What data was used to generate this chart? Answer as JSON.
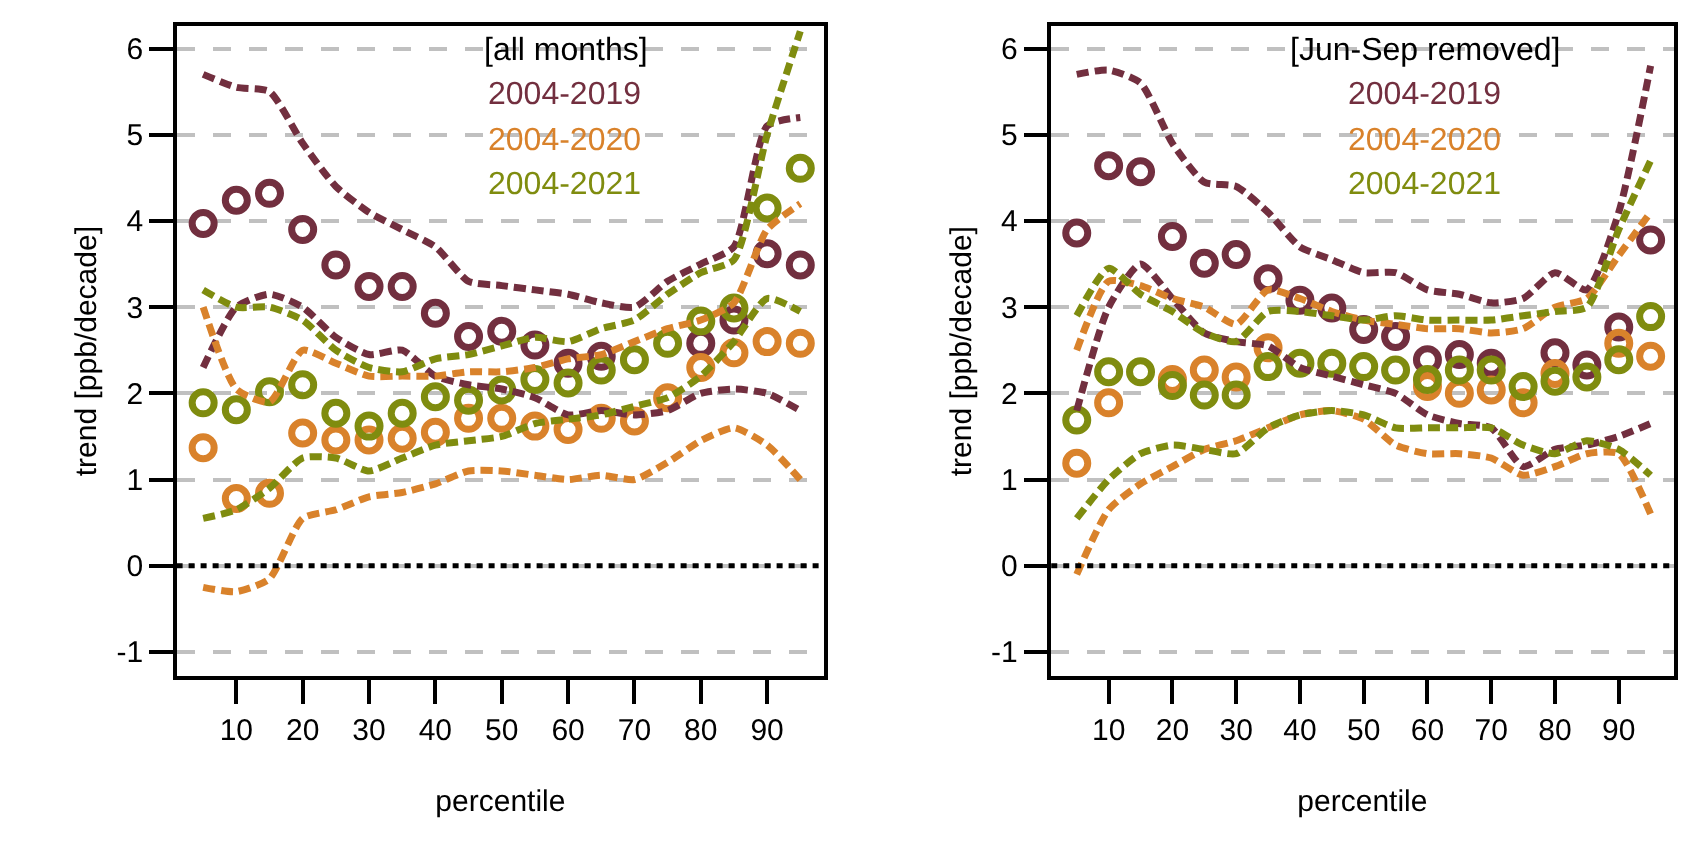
{
  "chart_data": [
    {
      "type": "scatter",
      "legend_title": "[all months]",
      "xlabel": "percentile",
      "ylabel": "trend [ppb/decade]",
      "x": [
        5,
        10,
        15,
        20,
        25,
        30,
        35,
        40,
        45,
        50,
        55,
        60,
        65,
        70,
        75,
        80,
        85,
        90,
        95
      ],
      "xlim": [
        1,
        98.6
      ],
      "xticks": [
        10,
        20,
        30,
        40,
        50,
        60,
        70,
        80,
        90
      ],
      "ylim": [
        -1.28,
        6.26
      ],
      "yticks": [
        -1,
        0,
        1,
        2,
        3,
        4,
        5,
        6
      ],
      "grid": "y",
      "legend": "top",
      "marker": "circle",
      "line_style": "dashed",
      "ref_lines": [
        {
          "axis": "y",
          "value": 0,
          "color": "#000000",
          "line_style": "dotted"
        }
      ],
      "series": [
        {
          "name": "2004-2019",
          "color": "#722f3f",
          "values": [
            3.97,
            4.24,
            4.32,
            3.9,
            3.49,
            3.24,
            3.24,
            2.93,
            2.66,
            2.72,
            2.56,
            2.35,
            2.43,
            null,
            null,
            2.58,
            2.85,
            3.62,
            3.49
          ]
        },
        {
          "name": "2004-2020",
          "color": "#d9822b",
          "values": [
            1.37,
            0.78,
            0.84,
            1.54,
            1.46,
            1.46,
            1.48,
            1.55,
            1.71,
            1.71,
            1.62,
            1.58,
            1.71,
            1.68,
            1.95,
            2.3,
            2.47,
            2.6,
            2.58
          ]
        },
        {
          "name": "2004-2021",
          "color": "#7f8c0f",
          "values": [
            1.89,
            1.81,
            2.02,
            2.1,
            1.77,
            1.62,
            1.77,
            1.96,
            1.92,
            2.04,
            2.16,
            2.12,
            2.27,
            2.39,
            2.58,
            2.84,
            2.99,
            4.15,
            4.61
          ]
        },
        {
          "type": "line",
          "marker": "none",
          "color": "#722f3f",
          "values": [
            2.3,
            3.0,
            3.15,
            3.0,
            2.65,
            2.45,
            2.5,
            2.2,
            2.1,
            2.05,
            1.95,
            1.75,
            1.8,
            1.75,
            1.8,
            2.0,
            2.05,
            2.0,
            1.8
          ]
        },
        {
          "type": "line",
          "marker": "none",
          "color": "#722f3f",
          "values": [
            5.7,
            5.55,
            5.5,
            4.9,
            4.4,
            4.1,
            3.9,
            3.7,
            3.3,
            3.25,
            3.2,
            3.15,
            3.05,
            3.0,
            3.3,
            3.5,
            3.7,
            5.1,
            5.2
          ]
        },
        {
          "type": "line",
          "marker": "none",
          "color": "#d9822b",
          "values": [
            -0.25,
            -0.3,
            -0.15,
            0.55,
            0.65,
            0.8,
            0.85,
            0.95,
            1.1,
            1.1,
            1.05,
            1.0,
            1.05,
            1.0,
            1.2,
            1.45,
            1.6,
            1.4,
            1.0
          ]
        },
        {
          "type": "line",
          "marker": "none",
          "color": "#d9822b",
          "values": [
            3.0,
            2.05,
            1.9,
            2.5,
            2.35,
            2.2,
            2.2,
            2.2,
            2.25,
            2.25,
            2.3,
            2.4,
            2.45,
            2.6,
            2.75,
            2.85,
            3.05,
            3.9,
            4.2
          ]
        },
        {
          "type": "line",
          "marker": "none",
          "color": "#7f8c0f",
          "values": [
            0.55,
            0.65,
            0.9,
            1.25,
            1.25,
            1.1,
            1.25,
            1.4,
            1.45,
            1.5,
            1.65,
            1.7,
            1.75,
            1.85,
            1.95,
            2.2,
            2.6,
            3.1,
            2.95
          ]
        },
        {
          "type": "line",
          "marker": "none",
          "color": "#7f8c0f",
          "values": [
            3.2,
            3.0,
            3.0,
            2.85,
            2.5,
            2.3,
            2.25,
            2.4,
            2.45,
            2.55,
            2.65,
            2.6,
            2.75,
            2.85,
            3.15,
            3.4,
            3.55,
            5.0,
            6.2
          ]
        }
      ]
    },
    {
      "type": "scatter",
      "legend_title": "[Jun-Sep removed]",
      "xlabel": "percentile",
      "ylabel": "trend [ppb/decade]",
      "x": [
        5,
        10,
        15,
        20,
        25,
        30,
        35,
        40,
        45,
        50,
        55,
        60,
        65,
        70,
        75,
        80,
        85,
        90,
        95
      ],
      "xlim": [
        1,
        98.6
      ],
      "xticks": [
        10,
        20,
        30,
        40,
        50,
        60,
        70,
        80,
        90
      ],
      "ylim": [
        -1.28,
        6.26
      ],
      "yticks": [
        -1,
        0,
        1,
        2,
        3,
        4,
        5,
        6
      ],
      "grid": "y",
      "legend": "top",
      "marker": "circle",
      "line_style": "dashed",
      "ref_lines": [
        {
          "axis": "y",
          "value": 0,
          "color": "#000000",
          "line_style": "dotted"
        }
      ],
      "series": [
        {
          "name": "2004-2019",
          "color": "#722f3f",
          "values": [
            3.86,
            4.64,
            4.57,
            3.82,
            3.51,
            3.61,
            3.33,
            3.08,
            2.99,
            2.74,
            2.66,
            2.39,
            2.45,
            2.35,
            null,
            2.47,
            2.33,
            2.77,
            3.78
          ]
        },
        {
          "name": "2004-2020",
          "color": "#d9822b",
          "values": [
            1.19,
            1.89,
            null,
            2.16,
            2.27,
            2.19,
            2.53,
            null,
            null,
            null,
            null,
            2.08,
            2.0,
            2.04,
            1.89,
            2.23,
            null,
            2.58,
            2.43
          ]
        },
        {
          "name": "2004-2021",
          "color": "#7f8c0f",
          "values": [
            1.69,
            2.25,
            2.25,
            2.09,
            1.98,
            1.98,
            2.31,
            2.35,
            2.35,
            2.31,
            2.27,
            2.16,
            2.27,
            2.27,
            2.08,
            2.14,
            2.19,
            2.39,
            2.89
          ]
        },
        {
          "type": "line",
          "marker": "none",
          "color": "#722f3f",
          "values": [
            1.8,
            3.0,
            3.5,
            3.1,
            2.7,
            2.6,
            2.55,
            2.3,
            2.2,
            2.1,
            2.0,
            1.75,
            1.65,
            1.6,
            1.15,
            1.35,
            1.4,
            1.5,
            1.65
          ]
        },
        {
          "type": "line",
          "marker": "none",
          "color": "#722f3f",
          "values": [
            5.7,
            5.75,
            5.6,
            4.9,
            4.45,
            4.4,
            4.1,
            3.7,
            3.55,
            3.4,
            3.4,
            3.2,
            3.15,
            3.05,
            3.1,
            3.4,
            3.2,
            4.1,
            5.8
          ]
        },
        {
          "type": "line",
          "marker": "none",
          "color": "#d9822b",
          "values": [
            -0.1,
            0.65,
            0.95,
            1.15,
            1.35,
            1.45,
            1.6,
            1.75,
            1.8,
            1.7,
            1.4,
            1.3,
            1.3,
            1.25,
            1.05,
            1.15,
            1.3,
            1.3,
            0.6
          ]
        },
        {
          "type": "line",
          "marker": "none",
          "color": "#d9822b",
          "values": [
            2.5,
            3.3,
            3.25,
            3.1,
            3.0,
            2.8,
            3.2,
            3.1,
            2.95,
            2.85,
            2.8,
            2.75,
            2.75,
            2.7,
            2.75,
            3.0,
            3.1,
            3.6,
            4.1
          ]
        },
        {
          "type": "line",
          "marker": "none",
          "color": "#7f8c0f",
          "values": [
            0.55,
            1.0,
            1.3,
            1.4,
            1.35,
            1.3,
            1.6,
            1.75,
            1.8,
            1.75,
            1.6,
            1.6,
            1.6,
            1.6,
            1.4,
            1.3,
            1.45,
            1.35,
            1.05
          ]
        },
        {
          "type": "line",
          "marker": "none",
          "color": "#7f8c0f",
          "values": [
            2.9,
            3.45,
            3.15,
            2.95,
            2.7,
            2.6,
            2.95,
            2.95,
            2.9,
            2.85,
            2.9,
            2.85,
            2.85,
            2.85,
            2.9,
            2.95,
            3.0,
            3.9,
            4.7
          ]
        }
      ]
    }
  ]
}
